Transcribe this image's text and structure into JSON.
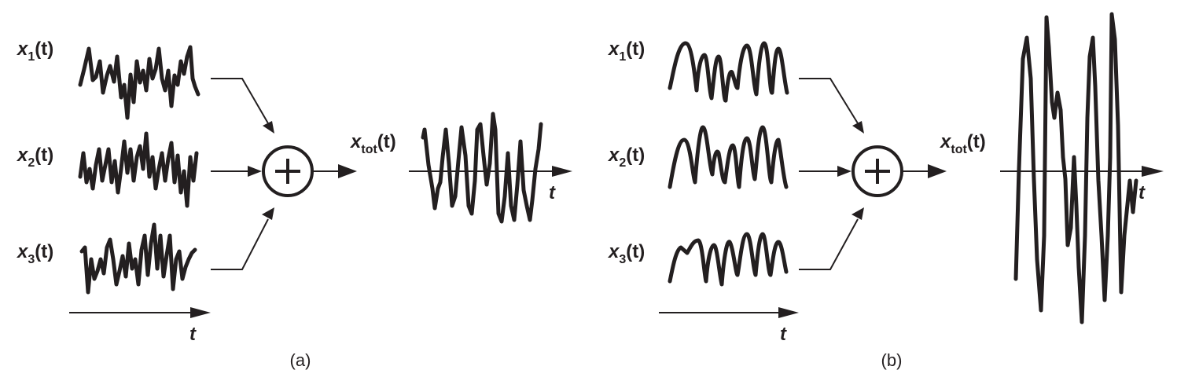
{
  "panels": [
    {
      "id": "a",
      "caption": "(a)",
      "inputs": [
        {
          "name": "x",
          "sub": "1",
          "arg": "(t)"
        },
        {
          "name": "x",
          "sub": "2",
          "arg": "(t)"
        },
        {
          "name": "x",
          "sub": "3",
          "arg": "(t)"
        }
      ],
      "time_axis_label": "t",
      "output": {
        "name": "x",
        "sub": "tot",
        "arg": "(t)"
      },
      "output_axis_label": "t"
    },
    {
      "id": "b",
      "caption": "(b)",
      "inputs": [
        {
          "name": "x",
          "sub": "1",
          "arg": "(t)"
        },
        {
          "name": "x",
          "sub": "2",
          "arg": "(t)"
        },
        {
          "name": "x",
          "sub": "3",
          "arg": "(t)"
        }
      ],
      "time_axis_label": "t",
      "output": {
        "name": "x",
        "sub": "tot",
        "arg": "(t)"
      },
      "output_axis_label": "t"
    }
  ]
}
